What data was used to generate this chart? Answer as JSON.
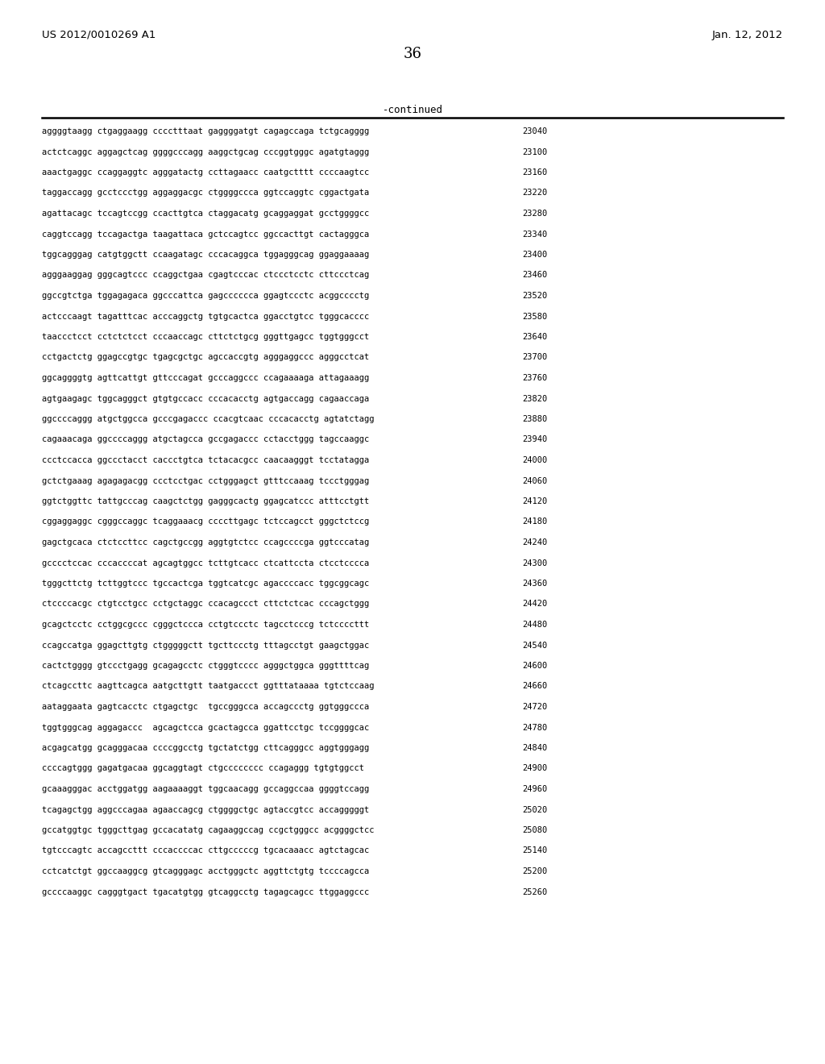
{
  "header_left": "US 2012/0010269 A1",
  "header_right": "Jan. 12, 2012",
  "page_number": "36",
  "continued_label": "-continued",
  "background_color": "#ffffff",
  "text_color": "#000000",
  "sequence_lines": [
    [
      "aggggtaagg ctgaggaagg cccctttaat gaggggatgt cagagccaga tctgcagggg",
      "23040"
    ],
    [
      "actctcaggc aggagctcag ggggcccagg aaggctgcag cccggtgggc agatgtaggg",
      "23100"
    ],
    [
      "aaactgaggc ccaggaggtc agggatactg ccttagaacc caatgctttt ccccaagtcc",
      "23160"
    ],
    [
      "taggaccagg gcctccctgg aggaggacgc ctggggccca ggtccaggtc cggactgata",
      "23220"
    ],
    [
      "agattacagc tccagtccgg ccacttgtca ctaggacatg gcaggaggat gcctggggcc",
      "23280"
    ],
    [
      "caggtccagg tccagactga taagattaca gctccagtcc ggccacttgt cactagggca",
      "23340"
    ],
    [
      "tggcagggag catgtggctt ccaagatagc cccacaggca tggagggcag ggaggaaaag",
      "23400"
    ],
    [
      "agggaaggag gggcagtccc ccaggctgaa cgagtcccac ctccctcctc cttccctcag",
      "23460"
    ],
    [
      "ggccgtctga tggagagaca ggcccattca gagcccccca ggagtccctc acggcccctg",
      "23520"
    ],
    [
      "actcccaagt tagatttcac acccaggctg tgtgcactca ggacctgtcc tgggcacccc",
      "23580"
    ],
    [
      "taaccctcct cctctctcct cccaaccagc cttctctgcg gggttgagcc tggtgggcct",
      "23640"
    ],
    [
      "cctgactctg ggagccgtgc tgagcgctgc agccaccgtg agggaggccc agggcctcat",
      "23700"
    ],
    [
      "ggcaggggtg agttcattgt gttcccagat gcccaggccc ccagaaaaga attagaaagg",
      "23760"
    ],
    [
      "agtgaagagc tggcagggct gtgtgccacc cccacacctg agtgaccagg cagaaccaga",
      "23820"
    ],
    [
      "ggccccaggg atgctggcca gcccgagaccc ccacgtcaac cccacacctg agtatctagg",
      "23880"
    ],
    [
      "cagaaacaga ggccccaggg atgctagcca gccgagaccc cctacctggg tagccaaggc",
      "23940"
    ],
    [
      "ccctccacca ggccctacct caccctgtca tctacacgcc caacaagggt tcctatagga",
      "24000"
    ],
    [
      "gctctgaaag agagagacgg ccctcctgac cctgggagct gtttccaaag tccctgggag",
      "24060"
    ],
    [
      "ggtctggttc tattgcccag caagctctgg gagggcactg ggagcatccc atttcctgtt",
      "24120"
    ],
    [
      "cggaggaggc cgggccaggc tcaggaaacg ccccttgagc tctccagcct gggctctccg",
      "24180"
    ],
    [
      "gagctgcaca ctctccttcc cagctgccgg aggtgtctcc ccagccccga ggtcccatag",
      "24240"
    ],
    [
      "gcccctccac cccaccccat agcagtggcc tcttgtcacc ctcattccta ctcctcccca",
      "24300"
    ],
    [
      "tgggcttctg tcttggtccc tgccactcga tggtcatcgc agaccccacc tggcggcagc",
      "24360"
    ],
    [
      "ctccccacgc ctgtcctgcc cctgctaggc ccacagccct cttctctcac cccagctggg",
      "24420"
    ],
    [
      "gcagctcctc cctggcgccc cgggctccca cctgtccctc tagcctcccg tctccccttt",
      "24480"
    ],
    [
      "ccagccatga ggagcttgtg ctgggggctt tgcttccctg tttagcctgt gaagctggac",
      "24540"
    ],
    [
      "cactctgggg gtccctgagg gcagagcctc ctgggtcccc agggctggca gggttttcag",
      "24600"
    ],
    [
      "ctcagccttc aagttcagca aatgcttgtt taatgaccct ggtttataaaa tgtctccaag",
      "24660"
    ],
    [
      "aataggaata gagtcacctc ctgagctgc  tgccgggcca accagccctg ggtgggccca",
      "24720"
    ],
    [
      "tggtgggcag aggagaccc  agcagctcca gcactagcca ggattcctgc tccggggcac",
      "24780"
    ],
    [
      "acgagcatgg gcagggacaa ccccggcctg tgctatctgg cttcagggcc aggtgggagg",
      "24840"
    ],
    [
      "ccccagtggg gagatgacaa ggcaggtagt ctgcccccccc ccagaggg tgtgtggcct",
      "24900"
    ],
    [
      "gcaaagggac acctggatgg aagaaaaggt tggcaacagg gccaggccaa ggggtccagg",
      "24960"
    ],
    [
      "tcagagctgg aggcccagaa agaaccagcg ctggggctgc agtaccgtcc accagggggt",
      "25020"
    ],
    [
      "gccatggtgc tgggcttgag gccacatatg cagaaggccag ccgctgggcc acggggctcc",
      "25080"
    ],
    [
      "tgtcccagtc accagccttt cccaccccac cttgcccccg tgcacaaacc agtctagcac",
      "25140"
    ],
    [
      "cctcatctgt ggccaaggcg gtcagggagc acctgggctc aggttctgtg tccccagcca",
      "25200"
    ],
    [
      "gccccaaggc cagggtgact tgacatgtgg gtcaggcctg tagagcagcc ttggaggccc",
      "25260"
    ]
  ]
}
